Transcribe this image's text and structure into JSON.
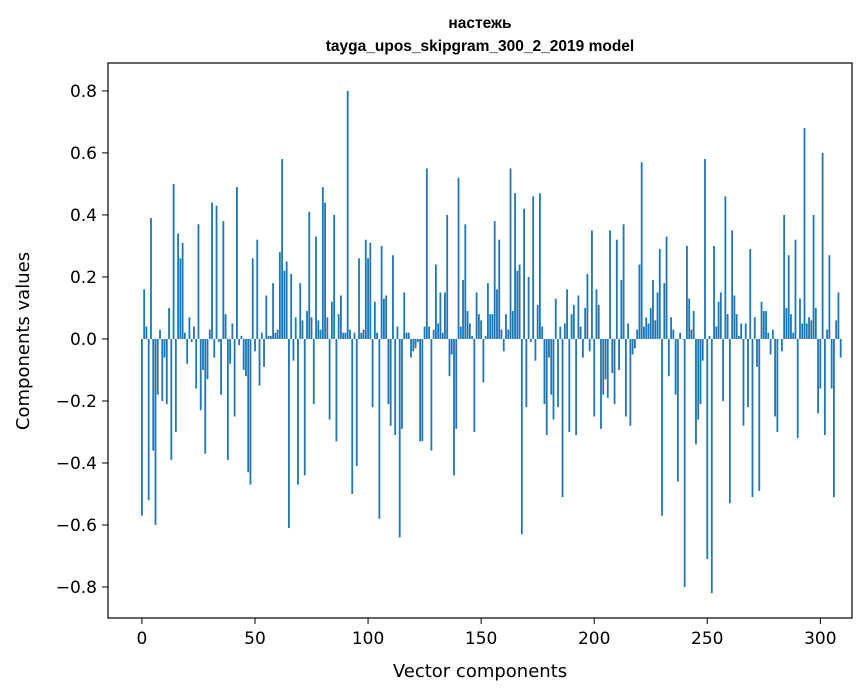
{
  "chart_data": {
    "type": "bar",
    "title": "настежь",
    "subtitle": "tayga_upos_skipgram_300_2_2019 model",
    "xlabel": "Vector components",
    "ylabel": "Components values",
    "xlim": [
      -15,
      314
    ],
    "ylim": [
      -0.9,
      0.89
    ],
    "xticks": [
      0,
      50,
      100,
      150,
      200,
      250,
      300
    ],
    "xtick_labels": [
      "0",
      "50",
      "100",
      "150",
      "200",
      "250",
      "300"
    ],
    "yticks": [
      -0.8,
      -0.6,
      -0.4,
      -0.2,
      0.0,
      0.2,
      0.4,
      0.6,
      0.8
    ],
    "ytick_labels": [
      "−0.8",
      "−0.6",
      "−0.4",
      "−0.2",
      "0.0",
      "0.2",
      "0.4",
      "0.6",
      "0.8"
    ],
    "bar_color": "#1f77b4",
    "grid": false,
    "values": [
      -0.57,
      0.16,
      0.04,
      -0.52,
      0.39,
      -0.36,
      -0.6,
      -0.18,
      0.03,
      -0.2,
      -0.06,
      -0.21,
      0.1,
      -0.39,
      0.5,
      -0.3,
      0.34,
      0.26,
      0.31,
      0.02,
      -0.08,
      0.07,
      -0.01,
      0.04,
      -0.16,
      0.37,
      -0.23,
      -0.1,
      -0.37,
      -0.13,
      0.03,
      0.44,
      -0.06,
      0.43,
      -0.01,
      -0.18,
      0.38,
      0.08,
      -0.39,
      -0.08,
      0.05,
      -0.25,
      0.49,
      -0.02,
      0.01,
      -0.1,
      -0.12,
      -0.43,
      -0.47,
      0.26,
      -0.04,
      0.32,
      -0.15,
      0.02,
      -0.09,
      0.14,
      0.01,
      0.01,
      0.18,
      0.02,
      0.03,
      0.28,
      0.58,
      0.22,
      0.25,
      -0.61,
      0.21,
      -0.07,
      0.07,
      -0.47,
      0.18,
      0.06,
      -0.44,
      0.09,
      0.41,
      0.07,
      -0.21,
      0.33,
      0.06,
      0.03,
      0.49,
      0.44,
      0.07,
      -0.26,
      0.12,
      0.4,
      -0.33,
      0.08,
      0.14,
      0.02,
      0.02,
      0.8,
      0.03,
      -0.5,
      0.02,
      -0.41,
      0.26,
      0.02,
      0.03,
      0.32,
      0.26,
      0.31,
      -0.22,
      0.12,
      0.02,
      -0.58,
      0.3,
      0.13,
      0.14,
      -0.21,
      -0.28,
      0.27,
      -0.31,
      0.04,
      -0.64,
      -0.29,
      0.15,
      0.02,
      0.02,
      -0.06,
      -0.04,
      -0.03,
      -0.01,
      -0.33,
      -0.33,
      0.04,
      0.55,
      0.04,
      -0.36,
      0.03,
      0.24,
      0.05,
      0.15,
      0.02,
      0.15,
      0.4,
      -0.12,
      -0.05,
      -0.44,
      -0.29,
      0.52,
      0.04,
      0.19,
      0.37,
      0.09,
      0.05,
      0.01,
      -0.3,
      0.15,
      0.08,
      0.06,
      -0.14,
      0.01,
      0.18,
      0.08,
      0.08,
      0.38,
      0.16,
      0.32,
      0.03,
      -0.04,
      0.08,
      0.03,
      0.55,
      0.09,
      0.47,
      0.22,
      0.24,
      -0.63,
      0.42,
      -0.22,
      0.2,
      -0.01,
      0.46,
      -0.07,
      0.11,
      0.47,
      0.04,
      -0.21,
      -0.31,
      -0.06,
      -0.18,
      -0.26,
      0.13,
      -0.22,
      0.04,
      -0.51,
      0.05,
      0.16,
      -0.3,
      0.08,
      0.11,
      -0.31,
      0.14,
      0.04,
      -0.06,
      0.1,
      0.21,
      -0.04,
      0.35,
      -0.25,
      0.16,
      0.11,
      -0.29,
      -0.18,
      -0.13,
      -0.19,
      0.35,
      -0.11,
      -0.21,
      0.32,
      -0.1,
      0.19,
      0.37,
      -0.25,
      0.05,
      -0.28,
      -0.05,
      -0.03,
      0.03,
      0.24,
      0.57,
      0.04,
      0.07,
      0.05,
      0.1,
      0.19,
      0.06,
      0.15,
      0.29,
      -0.57,
      0.18,
      0.33,
      -0.12,
      0.07,
      0.03,
      -0.18,
      -0.46,
      0.02,
      0.0,
      -0.8,
      0.3,
      0.13,
      0.03,
      0.09,
      -0.34,
      -0.26,
      -0.21,
      -0.07,
      0.58,
      -0.71,
      0.01,
      -0.82,
      0.3,
      0.04,
      0.12,
      0.15,
      -0.2,
      0.46,
      0.08,
      -0.53,
      0.35,
      0.14,
      0.08,
      0.01,
      0.05,
      -0.28,
      0.05,
      -0.22,
      0.29,
      -0.51,
      0.07,
      -0.09,
      -0.49,
      0.12,
      0.09,
      0.09,
      0.02,
      -0.05,
      0.03,
      -0.25,
      -0.3,
      0.0,
      -0.04,
      0.4,
      0.1,
      0.27,
      0.08,
      0.02,
      0.32,
      -0.32,
      0.13,
      0.05,
      0.68,
      0.05,
      0.07,
      0.06,
      0.4,
      0.1,
      -0.24,
      -0.16,
      0.6,
      -0.31,
      0.03,
      0.27,
      -0.16,
      -0.51,
      0.06,
      0.15,
      -0.06
    ]
  }
}
